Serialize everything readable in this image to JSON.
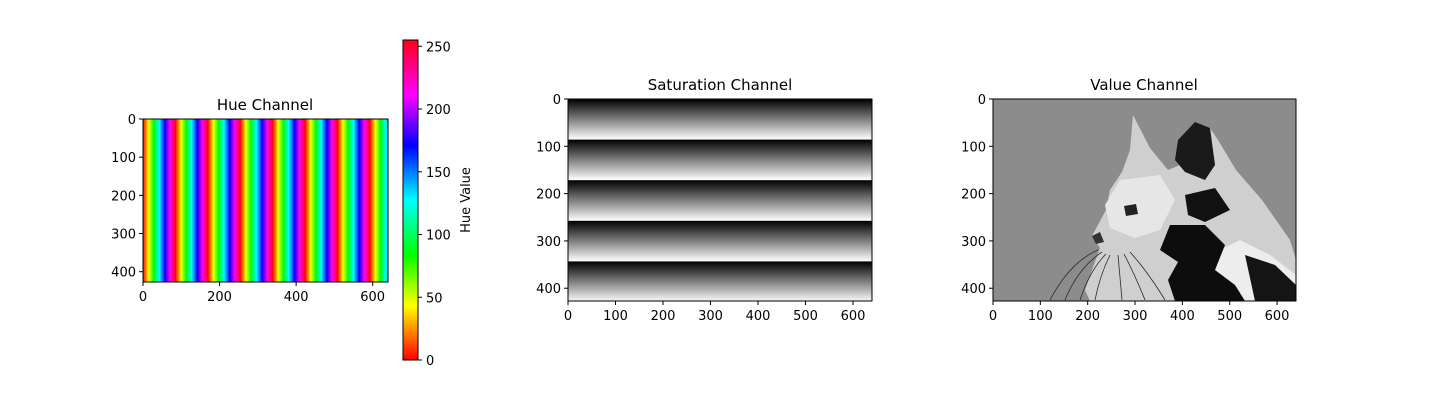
{
  "chart_data": [
    {
      "type": "heatmap",
      "title": "Hue Channel",
      "image_width": 640,
      "image_height": 427,
      "xticks": [
        0,
        200,
        400,
        600
      ],
      "yticks": [
        0,
        100,
        200,
        300,
        400
      ],
      "stripe_period": 85.33,
      "colormap": "hsv",
      "colorbar": {
        "label": "Hue Value",
        "range": [
          0,
          255
        ],
        "ticks": [
          0,
          50,
          100,
          150,
          200,
          250
        ]
      }
    },
    {
      "type": "heatmap",
      "title": "Saturation Channel",
      "image_width": 640,
      "image_height": 427,
      "xticks": [
        0,
        100,
        200,
        300,
        400,
        500,
        600
      ],
      "yticks": [
        0,
        100,
        200,
        300,
        400
      ],
      "band_period": 85.33,
      "colormap": "gray"
    },
    {
      "type": "heatmap",
      "title": "Value Channel",
      "image_width": 640,
      "image_height": 427,
      "xticks": [
        0,
        100,
        200,
        300,
        400,
        500,
        600
      ],
      "yticks": [
        0,
        100,
        200,
        300,
        400
      ],
      "colormap": "gray",
      "background": "#8c8c8c"
    }
  ]
}
